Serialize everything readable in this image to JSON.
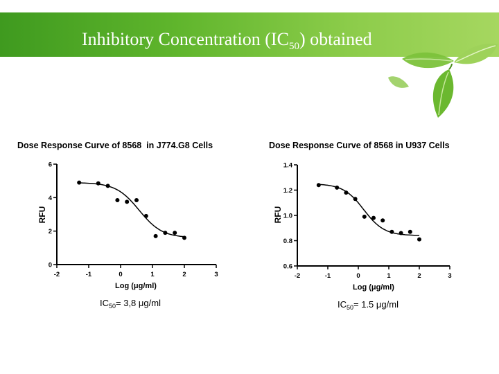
{
  "slide": {
    "title_prefix": "Inhibitory Concentration (IC",
    "title_sub": "50",
    "title_suffix": ") obtained"
  },
  "chart_data": [
    {
      "type": "scatter",
      "title": "Dose Response Curve of 8568  in J774.G8 Cells",
      "xlabel": "Log (μg/ml)",
      "ylabel": "RFU",
      "xlim": [
        -2,
        3
      ],
      "ylim": [
        0,
        6
      ],
      "xticks": [
        "-2",
        "-1",
        "0",
        "1",
        "2",
        "3"
      ],
      "yticks": [
        "0",
        "2",
        "4",
        "6"
      ],
      "fit": {
        "top": 4.9,
        "bottom": 1.6,
        "logIC50": 0.58,
        "hill": 1.2
      },
      "points": [
        {
          "x": -1.3,
          "y": 4.9
        },
        {
          "x": -0.7,
          "y": 4.85
        },
        {
          "x": -0.4,
          "y": 4.7
        },
        {
          "x": -0.1,
          "y": 3.85
        },
        {
          "x": 0.2,
          "y": 3.75
        },
        {
          "x": 0.5,
          "y": 3.85
        },
        {
          "x": 0.8,
          "y": 2.9
        },
        {
          "x": 1.1,
          "y": 1.7
        },
        {
          "x": 1.4,
          "y": 1.9
        },
        {
          "x": 1.7,
          "y": 1.9
        },
        {
          "x": 2.0,
          "y": 1.6
        }
      ],
      "ic50_prefix": "IC",
      "ic50_sub": "50",
      "ic50_value": "= 3,8 μg/ml"
    },
    {
      "type": "scatter",
      "title": "Dose Response Curve of 8568 in U937 Cells",
      "xlabel": "Log (μg/ml)",
      "ylabel": "RFU",
      "xlim": [
        -2,
        3
      ],
      "ylim": [
        0.6,
        1.4
      ],
      "xticks": [
        "-2",
        "-1",
        "0",
        "1",
        "2",
        "3"
      ],
      "yticks": [
        "0.6",
        "0.8",
        "1.0",
        "1.2",
        "1.4"
      ],
      "fit": {
        "top": 1.25,
        "bottom": 0.84,
        "logIC50": 0.18,
        "hill": 1.3
      },
      "points": [
        {
          "x": -1.3,
          "y": 1.24
        },
        {
          "x": -0.7,
          "y": 1.22
        },
        {
          "x": -0.4,
          "y": 1.18
        },
        {
          "x": -0.1,
          "y": 1.13
        },
        {
          "x": 0.2,
          "y": 0.99
        },
        {
          "x": 0.5,
          "y": 0.98
        },
        {
          "x": 0.8,
          "y": 0.96
        },
        {
          "x": 1.1,
          "y": 0.87
        },
        {
          "x": 1.4,
          "y": 0.86
        },
        {
          "x": 1.7,
          "y": 0.87
        },
        {
          "x": 2.0,
          "y": 0.81
        }
      ],
      "ic50_prefix": "IC",
      "ic50_sub": "50",
      "ic50_value": "= 1.5 μg/ml"
    }
  ]
}
